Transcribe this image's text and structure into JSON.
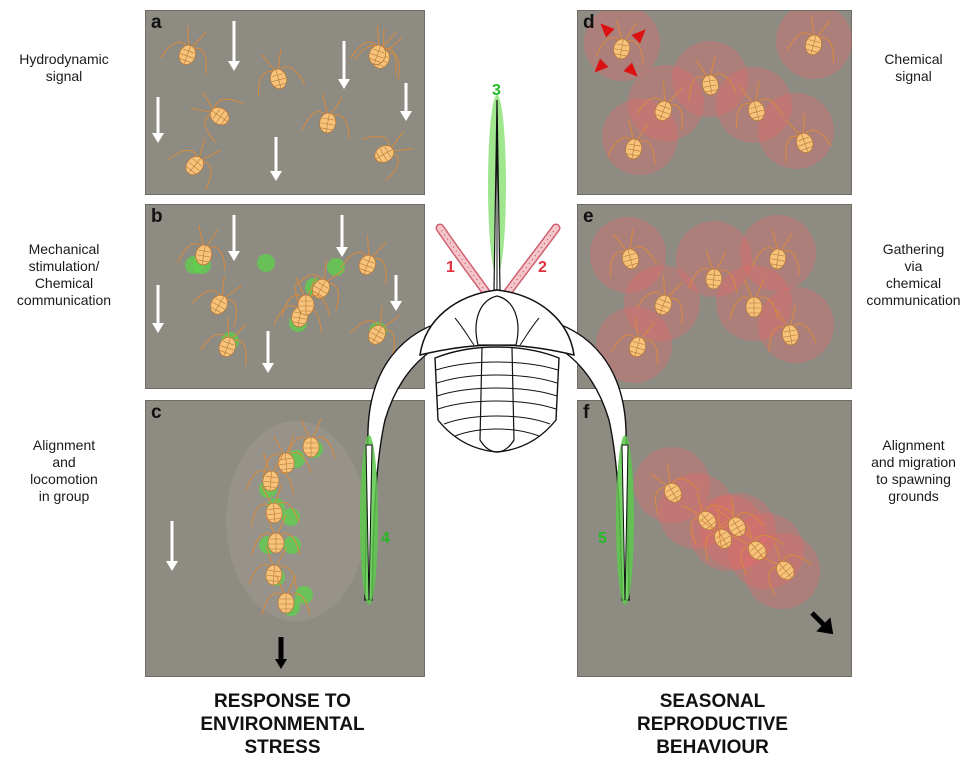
{
  "panels": [
    {
      "letter": "a",
      "label_lines": [
        "Hydrodynamic",
        "signal"
      ]
    },
    {
      "letter": "b",
      "label_lines": [
        "Mechanical",
        "stimulation/",
        "Chemical",
        "communication"
      ]
    },
    {
      "letter": "c",
      "label_lines": [
        "Alignment",
        "and",
        "locomotion",
        "in group"
      ]
    },
    {
      "letter": "d",
      "label_lines": [
        "Chemical",
        "signal"
      ]
    },
    {
      "letter": "e",
      "label_lines": [
        "Gathering",
        "via",
        "chemical",
        "communication"
      ]
    },
    {
      "letter": "f",
      "label_lines": [
        "Alignment",
        "and migration",
        "to spawning",
        "grounds"
      ]
    }
  ],
  "headings": {
    "left_lines": [
      "RESPONSE TO",
      "ENVIRONMENTAL",
      "STRESS"
    ],
    "right_lines": [
      "SEASONAL",
      "REPRODUCTIVE",
      "BEHAVIOUR"
    ]
  },
  "appendages": [
    {
      "number": "1",
      "color": "#e03040",
      "kind": "left antennule"
    },
    {
      "number": "2",
      "color": "#e03040",
      "kind": "right antennule"
    },
    {
      "number": "3",
      "color": "#22bb22",
      "kind": "median spine"
    },
    {
      "number": "4",
      "color": "#22bb22",
      "kind": "left genal spine"
    },
    {
      "number": "5",
      "color": "#22bb22",
      "kind": "right genal spine"
    }
  ],
  "colors": {
    "panel_bg": "#8e8b83",
    "animal_body": "#f7c27a",
    "chemical_green": "#5dd24a",
    "chemical_red": "#e86a6a",
    "arrow_white": "#ffffff",
    "arrow_black": "#000000"
  }
}
